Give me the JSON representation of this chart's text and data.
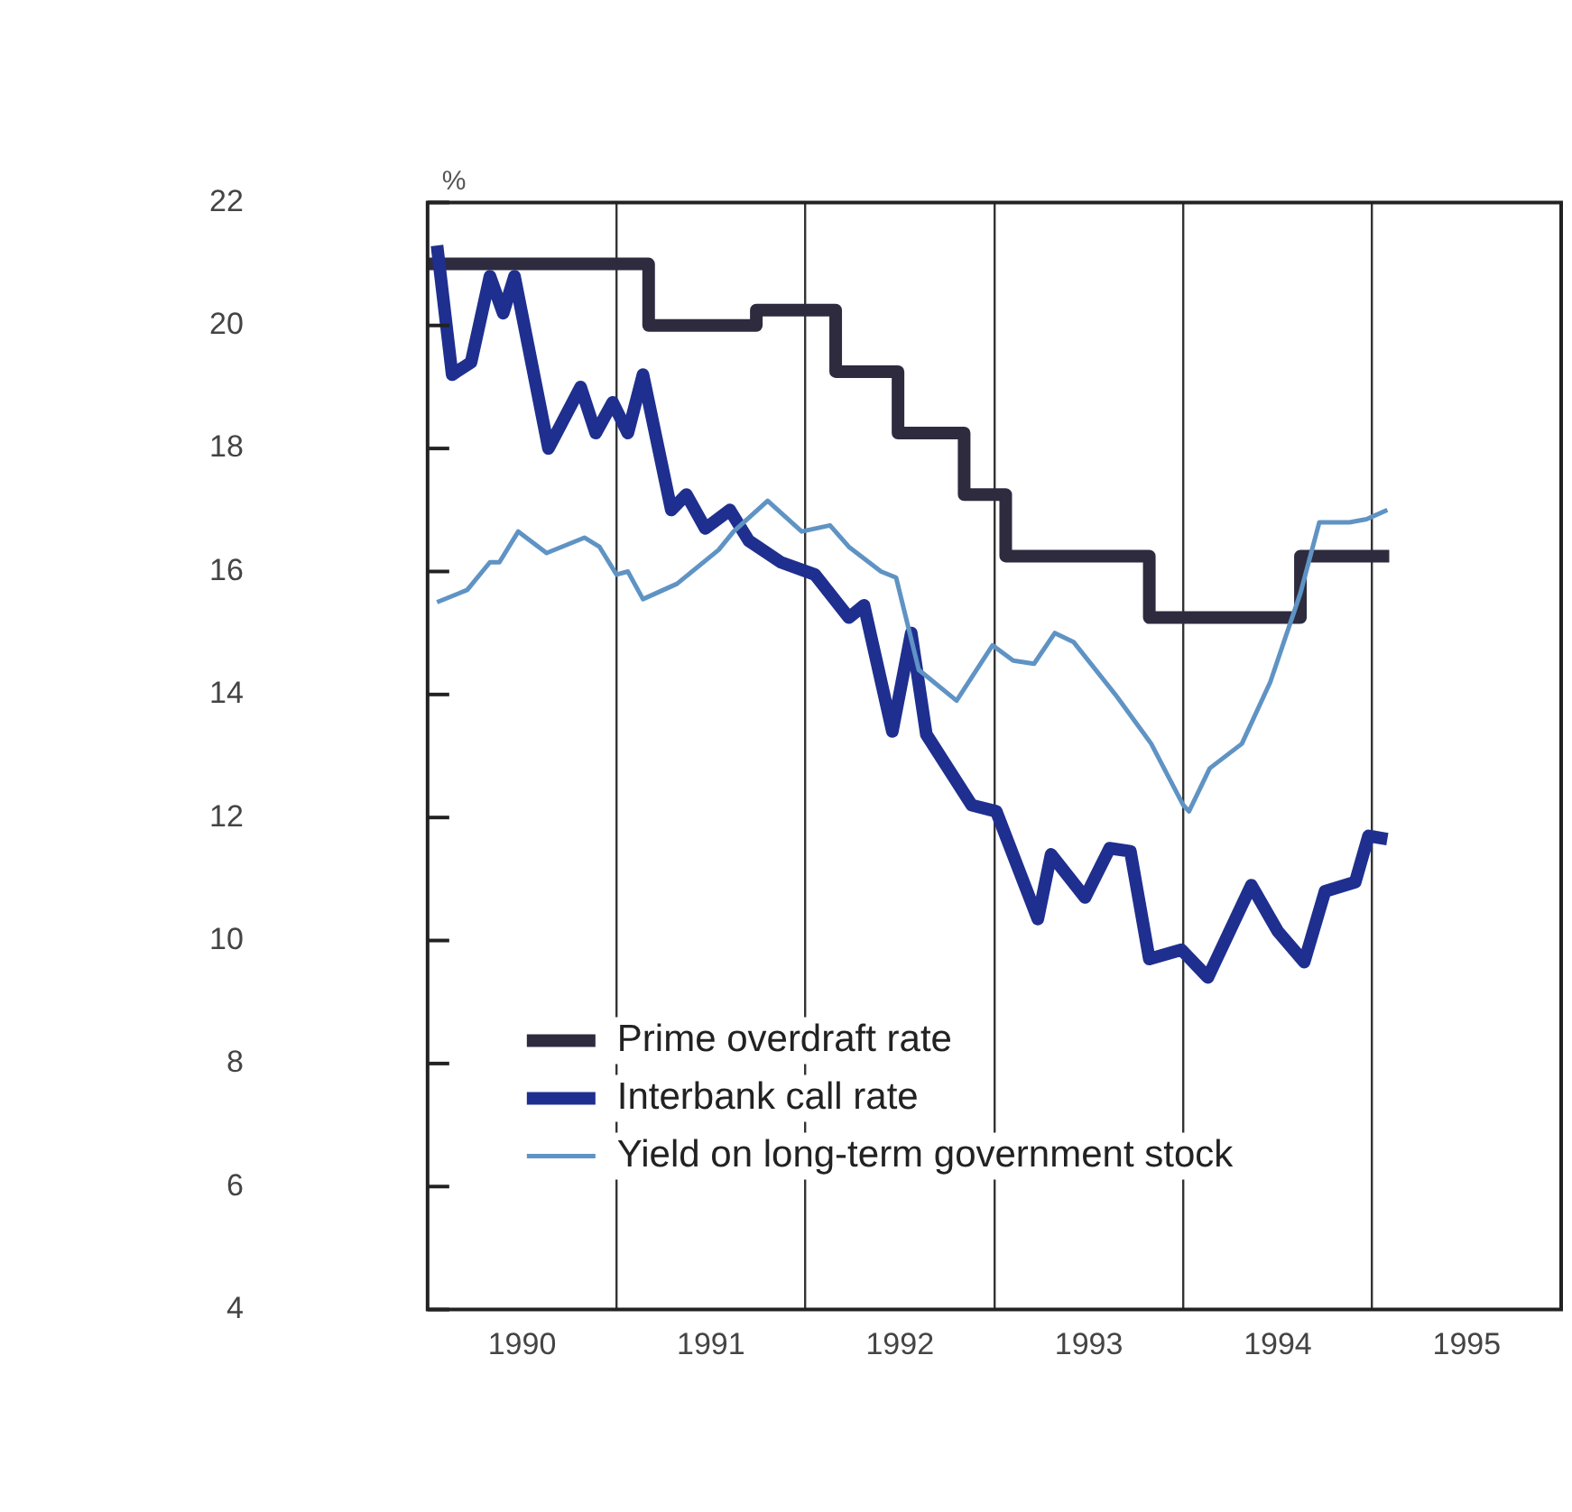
{
  "chart_data": {
    "type": "line",
    "ylabel": "%",
    "xlim": [
      1990,
      1996
    ],
    "xticks": [
      {
        "value": 1990.5,
        "label": "1990"
      },
      {
        "value": 1991,
        "label": null
      },
      {
        "value": 1991.5,
        "label": "1991"
      },
      {
        "value": 1992,
        "label": null
      },
      {
        "value": 1992.5,
        "label": "1992"
      },
      {
        "value": 1993,
        "label": null
      },
      {
        "value": 1993.5,
        "label": "1993"
      },
      {
        "value": 1994,
        "label": null
      },
      {
        "value": 1994.5,
        "label": "1994"
      },
      {
        "value": 1995,
        "label": null
      },
      {
        "value": 1995.5,
        "label": "1995"
      }
    ],
    "ylim": [
      4,
      22
    ],
    "yticks": [
      4,
      6,
      8,
      10,
      12,
      14,
      16,
      18,
      20,
      22
    ],
    "grid": "x",
    "legend": "bottom left",
    "marker": "none",
    "line_style": "solid",
    "series": [
      {
        "name": "Prime overdraft rate",
        "type": "step",
        "color": "#2e2b3f",
        "x": [
          1990.0,
          1991.17,
          1991.74,
          1992.16,
          1992.49,
          1992.84,
          1993.06,
          1993.82,
          1994.62,
          1995.09
        ],
        "values": [
          21,
          20,
          20.25,
          19.25,
          18.25,
          17.25,
          16.25,
          15.25,
          16.25,
          16.25
        ]
      },
      {
        "name": "Interbank call rate",
        "type": "line",
        "color": "#1f2f8f",
        "x": [
          1990.05,
          1990.13,
          1990.23,
          1990.33,
          1990.4,
          1990.46,
          1990.64,
          1990.81,
          1990.89,
          1990.98,
          1991.06,
          1991.14,
          1991.29,
          1991.37,
          1991.47,
          1991.6,
          1991.7,
          1991.87,
          1992.05,
          1992.23,
          1992.31,
          1992.46,
          1992.56,
          1992.64,
          1992.88,
          1993.01,
          1993.23,
          1993.3,
          1993.48,
          1993.61,
          1993.72,
          1993.82,
          1993.99,
          1994.13,
          1994.36,
          1994.5,
          1994.64,
          1994.75,
          1994.91,
          1994.98,
          1995.08
        ],
        "values": [
          21.3,
          19.2,
          19.4,
          20.8,
          20.2,
          20.8,
          18.0,
          19.0,
          18.25,
          18.75,
          18.25,
          19.2,
          17.0,
          17.25,
          16.7,
          17.0,
          16.5,
          16.15,
          15.95,
          15.25,
          15.45,
          13.4,
          15.0,
          13.35,
          12.2,
          12.1,
          10.35,
          11.4,
          10.7,
          11.5,
          11.45,
          9.7,
          9.85,
          9.4,
          10.9,
          10.15,
          9.65,
          10.8,
          10.95,
          11.7,
          11.65
        ]
      },
      {
        "name": "Yield on long-term government stock",
        "type": "line",
        "color": "#5f93c4",
        "x": [
          1990.05,
          1990.21,
          1990.33,
          1990.38,
          1990.48,
          1990.63,
          1990.83,
          1990.91,
          1991.0,
          1991.06,
          1991.14,
          1991.32,
          1991.54,
          1991.62,
          1991.8,
          1991.98,
          1992.13,
          1992.23,
          1992.4,
          1992.48,
          1992.6,
          1992.8,
          1992.99,
          1993.1,
          1993.21,
          1993.32,
          1993.42,
          1993.64,
          1993.83,
          1994.0,
          1994.03,
          1994.14,
          1994.31,
          1994.46,
          1994.62,
          1994.72,
          1994.88,
          1994.97,
          1995.08
        ],
        "values": [
          15.5,
          15.7,
          16.15,
          16.15,
          16.65,
          16.3,
          16.55,
          16.4,
          15.95,
          16.0,
          15.55,
          15.8,
          16.35,
          16.65,
          17.15,
          16.65,
          16.75,
          16.4,
          16.0,
          15.9,
          14.4,
          13.9,
          14.8,
          14.55,
          14.5,
          15.0,
          14.85,
          14.0,
          13.2,
          12.2,
          12.1,
          12.8,
          13.2,
          14.2,
          15.65,
          16.8,
          16.8,
          16.85,
          17.0
        ]
      }
    ]
  }
}
